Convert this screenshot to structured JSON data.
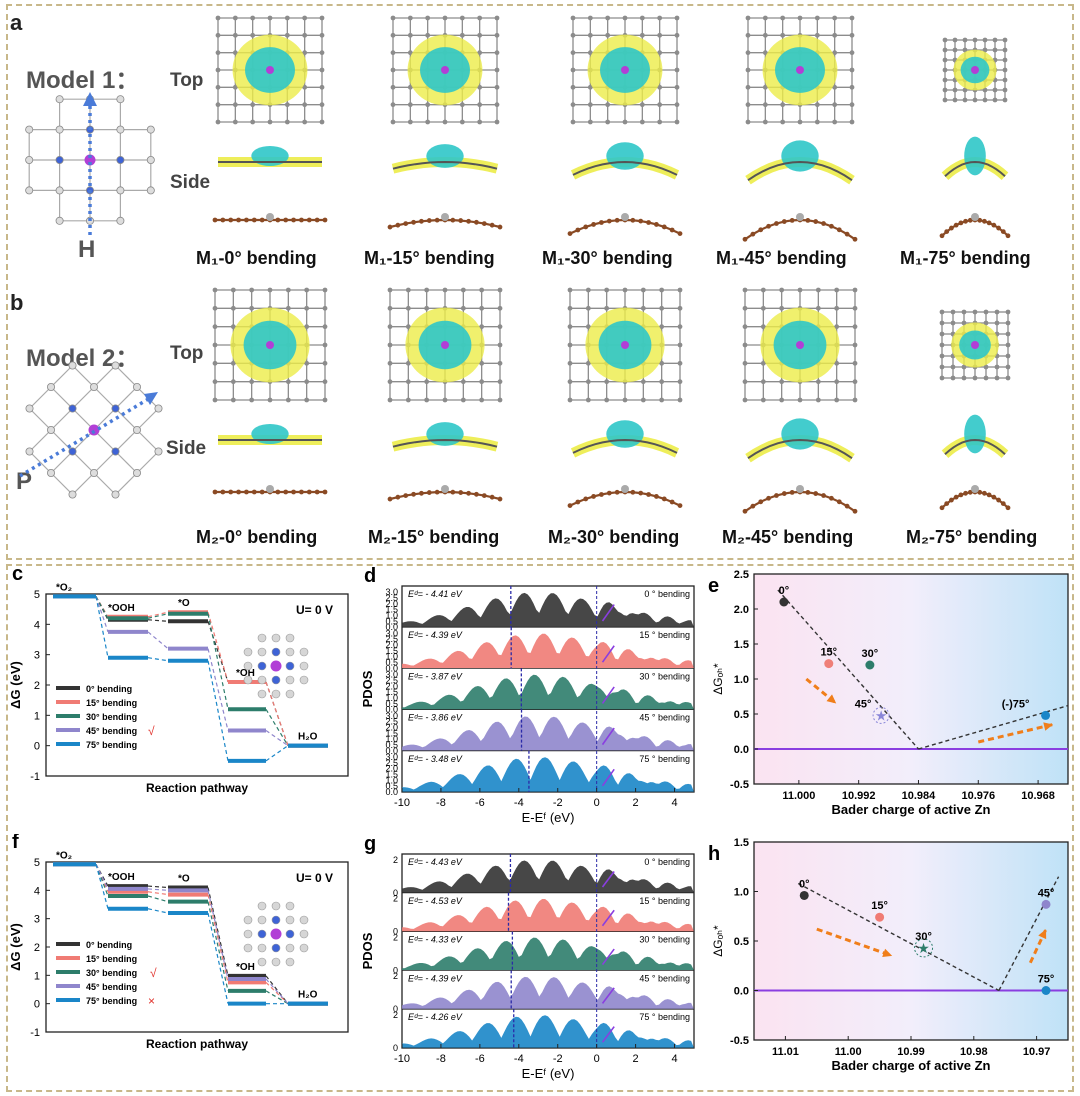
{
  "section_a": {
    "label": "a",
    "model_title": "Model  1：",
    "top": "Top",
    "side": "Side",
    "axis_letter": "H",
    "captions": [
      "M₁-0° bending",
      "M₁-15° bending",
      "M₁-30° bending",
      "M₁-45° bending",
      "M₁-75° bending"
    ]
  },
  "section_b": {
    "label": "b",
    "model_title": "Model  2：",
    "top": "Top",
    "side": "Side",
    "axis_letter": "P",
    "captions": [
      "M₂-0° bending",
      "M₂-15° bending",
      "M₂-30° bending",
      "M₂-45° bending",
      "M₂-75° bending"
    ]
  },
  "colors": {
    "cyan": "#2fc6c8",
    "yellow": "#ecec48",
    "carbon": "#8c8c8c",
    "zn": "#b13fd6",
    "n": "#3e63d6",
    "arrow_blue": "#4a7bd8",
    "bond_brown": "#8a4a24",
    "s0": "#333333",
    "s15": "#f07b74",
    "s30": "#2d7d6b",
    "s45": "#8f86cc",
    "s75": "#1a86c8",
    "purple_line": "#8a3ee0",
    "orange": "#f07e1a"
  },
  "chart_data": [
    {
      "panel": "c",
      "type": "line",
      "ylabel": "ΔG (eV)",
      "xlabel": "Reaction pathway",
      "annotation": "U= 0 V",
      "ylim": [
        -1,
        5
      ],
      "yticks": [
        "-1",
        "0",
        "1",
        "2",
        "3",
        "4",
        "5"
      ],
      "steps": [
        "*O₂",
        "*OOH",
        "*O",
        "*OH",
        "H₂O"
      ],
      "legend_mark": "√",
      "legend_mark_series": "45° bending",
      "series": [
        {
          "name": "0°  bending",
          "values": [
            4.92,
            4.15,
            4.1,
            2.1,
            0
          ]
        },
        {
          "name": "15° bending",
          "values": [
            4.92,
            4.25,
            4.4,
            2.1,
            0
          ]
        },
        {
          "name": "30° bending",
          "values": [
            4.92,
            4.2,
            4.35,
            1.2,
            0
          ]
        },
        {
          "name": "45° bending",
          "values": [
            4.92,
            3.75,
            3.2,
            0.5,
            0
          ]
        },
        {
          "name": "75° bending",
          "values": [
            4.92,
            2.9,
            2.8,
            -0.5,
            0
          ]
        }
      ]
    },
    {
      "panel": "d",
      "type": "area",
      "ylabel": "PDOS",
      "xlabel": "E-Eᶠ (eV)",
      "xlim": [
        -10,
        5
      ],
      "xticks": [
        "-10",
        "-8",
        "-6",
        "-4",
        "-2",
        "0",
        "2",
        "4"
      ],
      "yticks": [
        "0.0",
        "0.5",
        "1.0",
        "1.5",
        "2.0",
        "2.5",
        "3.0"
      ],
      "series": [
        {
          "name": "0 ° bending",
          "ed": "Eᵈ= - 4.41 eV",
          "dashed_x": -4.41
        },
        {
          "name": "15 ° bending",
          "ed": "Eᵈ= - 4.39 eV",
          "dashed_x": -4.39
        },
        {
          "name": "30 ° bending",
          "ed": "Eᵈ= - 3.87 eV",
          "dashed_x": -3.87
        },
        {
          "name": "45 ° bending",
          "ed": "Eᵈ= - 3.86 eV",
          "dashed_x": -3.86
        },
        {
          "name": "75 ° bending",
          "ed": "Eᵈ= - 3.48 eV",
          "dashed_x": -3.48
        }
      ]
    },
    {
      "panel": "e",
      "type": "scatter",
      "ylabel": "ΔGₒₕ*",
      "xlabel": "Bader charge of active Zn",
      "xlim": [
        11.006,
        10.964
      ],
      "ylim": [
        -0.5,
        2.5
      ],
      "xticks": [
        "11.000",
        "10.992",
        "10.984",
        "10.976",
        "10.968"
      ],
      "yticks": [
        "-0.5",
        "0.0",
        "0.5",
        "1.0",
        "1.5",
        "2.0",
        "2.5"
      ],
      "points": [
        {
          "label": "0°",
          "x": 11.002,
          "y": 2.1
        },
        {
          "label": "15°",
          "x": 10.996,
          "y": 1.22
        },
        {
          "label": "30°",
          "x": 10.9905,
          "y": 1.2
        },
        {
          "label": "45°",
          "x": 10.989,
          "y": 0.48
        },
        {
          "label": "(-)75°",
          "x": 10.967,
          "y": 0.48
        }
      ]
    },
    {
      "panel": "f",
      "type": "line",
      "ylabel": "ΔG (eV)",
      "xlabel": "Reaction pathway",
      "annotation": "U= 0 V",
      "ylim": [
        -1,
        5
      ],
      "yticks": [
        "-1",
        "0",
        "1",
        "2",
        "3",
        "4",
        "5"
      ],
      "steps": [
        "*O₂",
        "*OOH",
        "*O",
        "*OH",
        "H₂O"
      ],
      "legend_marks": [
        "√",
        "×"
      ],
      "series": [
        {
          "name": "0°  bending",
          "values": [
            4.92,
            4.15,
            4.1,
            0.98,
            0
          ]
        },
        {
          "name": "15° bending",
          "values": [
            4.92,
            3.95,
            3.85,
            0.75,
            0
          ]
        },
        {
          "name": "30° bending",
          "values": [
            4.92,
            3.8,
            3.6,
            0.45,
            0
          ]
        },
        {
          "name": "45° bending",
          "values": [
            4.92,
            4.05,
            4.0,
            0.87,
            0
          ]
        },
        {
          "name": "75° bending",
          "values": [
            4.92,
            3.35,
            3.2,
            0.0,
            0
          ]
        }
      ]
    },
    {
      "panel": "g",
      "type": "area",
      "ylabel": "PDOS",
      "xlabel": "E-Eᶠ (eV)",
      "xlim": [
        -10,
        5
      ],
      "xticks": [
        "-10",
        "-8",
        "-6",
        "-4",
        "-2",
        "0",
        "2",
        "4"
      ],
      "yticks": [
        "0",
        "2"
      ],
      "series": [
        {
          "name": "0 ° bending",
          "ed": "Eᵈ= - 4.43 eV",
          "dashed_x": -4.43
        },
        {
          "name": "15 ° bending",
          "ed": "Eᵈ= - 4.53 eV",
          "dashed_x": -4.53
        },
        {
          "name": "30 ° bending",
          "ed": "Eᵈ= - 4.33 eV",
          "dashed_x": -4.33
        },
        {
          "name": "45 ° bending",
          "ed": "Eᵈ= - 4.39 eV",
          "dashed_x": -4.39
        },
        {
          "name": "75 ° bending",
          "ed": "Eᵈ= - 4.26 eV",
          "dashed_x": -4.26
        }
      ]
    },
    {
      "panel": "h",
      "type": "scatter",
      "ylabel": "ΔGₒₕ*",
      "xlabel": "Bader charge of active Zn",
      "xlim": [
        11.015,
        10.965
      ],
      "ylim": [
        -0.5,
        1.5
      ],
      "xticks": [
        "11.01",
        "11.00",
        "10.99",
        "10.98",
        "10.97"
      ],
      "yticks": [
        "-0.5",
        "0.0",
        "0.5",
        "1.0",
        "1.5"
      ],
      "points": [
        {
          "label": "0°",
          "x": 11.007,
          "y": 0.96
        },
        {
          "label": "15°",
          "x": 10.995,
          "y": 0.74
        },
        {
          "label": "30°",
          "x": 10.988,
          "y": 0.43
        },
        {
          "label": "45°",
          "x": 10.9685,
          "y": 0.87
        },
        {
          "label": "75°",
          "x": 10.9685,
          "y": 0.0
        }
      ]
    }
  ],
  "panel_labels": {
    "c": "c",
    "d": "d",
    "e": "e",
    "f": "f",
    "g": "g",
    "h": "h"
  }
}
